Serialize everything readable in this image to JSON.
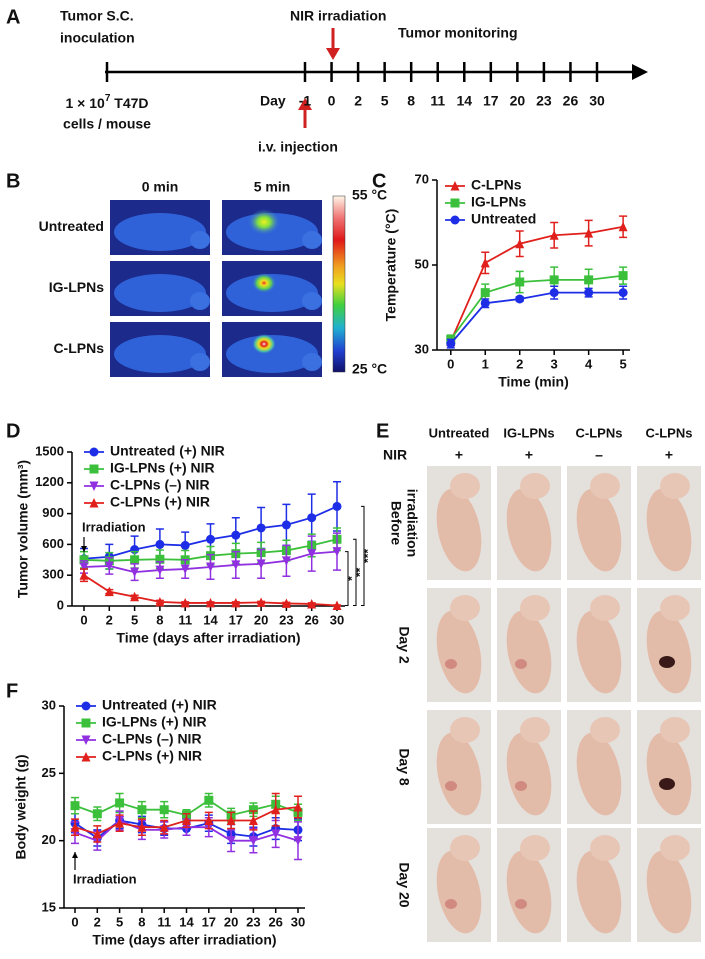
{
  "panels": {
    "A": {
      "label": "A",
      "inoculation": [
        "Tumor S.C.",
        "inoculation"
      ],
      "dose": {
        "base": "1 × 10",
        "exponent": "7",
        "rest": " T47D"
      },
      "dose_unit": "cells / mouse",
      "irradiation": "NIR irradiation",
      "monitoring": "Tumor monitoring",
      "day_label": "Day",
      "days": [
        -1,
        0,
        2,
        5,
        8,
        11,
        14,
        17,
        20,
        23,
        26,
        30
      ],
      "injection": "i.v. injection"
    },
    "B": {
      "label": "B",
      "columns": [
        "0 min",
        "5 min"
      ],
      "rows": [
        "Untreated",
        "IG-LPNs",
        "C-LPNs"
      ],
      "scale_max": "55 °C",
      "scale_min": "25 °C"
    },
    "E": {
      "label": "E",
      "columns": [
        "Untreated",
        "IG-LPNs",
        "C-LPNs",
        "C-LPNs"
      ],
      "nir_label": "NIR",
      "nir": [
        "+",
        "+",
        "–",
        "+"
      ],
      "rows": [
        [
          "Before",
          "irradiation"
        ],
        [
          "Day 2"
        ],
        [
          "Day 8"
        ],
        [
          "Day 20"
        ]
      ]
    }
  },
  "chart_data": [
    {
      "panel": "C",
      "type": "line",
      "x": [
        0,
        1,
        2,
        3,
        4,
        5
      ],
      "xlim": [
        -0.4,
        5.2
      ],
      "xticks": [
        0,
        1,
        2,
        3,
        4,
        5
      ],
      "ylim": [
        30,
        70
      ],
      "yticks": [
        30,
        50,
        70
      ],
      "xlabel": "Time (min)",
      "ylabel": "Temperature (°C)",
      "legend": "upper left",
      "series": [
        {
          "name": "C-LPNs",
          "color": "#e0201c",
          "marker": "triangle",
          "values": [
            32,
            50.5,
            55,
            57,
            57.5,
            59
          ],
          "errors": [
            1,
            2.5,
            3,
            3,
            3,
            2.5
          ]
        },
        {
          "name": "IG-LPNs",
          "color": "#3cc03c",
          "marker": "square",
          "values": [
            32.5,
            43.5,
            46,
            46.5,
            46.5,
            47.5
          ],
          "errors": [
            1,
            2,
            2.5,
            3,
            2.5,
            2
          ]
        },
        {
          "name": "Untreated",
          "color": "#1e2ee6",
          "marker": "circle",
          "values": [
            31.5,
            41,
            42,
            43.5,
            43.5,
            43.5
          ],
          "errors": [
            1,
            1,
            0.5,
            1.5,
            1,
            1.5
          ]
        }
      ]
    },
    {
      "panel": "D",
      "type": "line",
      "categories": [
        "0",
        "2",
        "5",
        "8",
        "11",
        "14",
        "17",
        "20",
        "23",
        "26",
        "30"
      ],
      "ylim": [
        0,
        1500
      ],
      "yticks": [
        0,
        300,
        600,
        900,
        1200,
        1500
      ],
      "xlabel": "Time (days after irradiation)",
      "ylabel": "Tumor volume (mm³)",
      "legend": "upper left",
      "annotation": "Irradiation",
      "significance": [
        "*",
        "**",
        "***"
      ],
      "series": [
        {
          "name": "Untreated (+) NIR",
          "color": "#1e2ee6",
          "marker": "circle",
          "values": [
            460,
            480,
            550,
            600,
            590,
            650,
            690,
            760,
            790,
            860,
            970
          ],
          "errors": [
            100,
            120,
            130,
            150,
            130,
            150,
            170,
            200,
            200,
            230,
            240
          ]
        },
        {
          "name": "IG-LPNs (+) NIR",
          "color": "#3cc03c",
          "marker": "square",
          "values": [
            450,
            440,
            450,
            455,
            450,
            490,
            510,
            520,
            540,
            590,
            650
          ],
          "errors": [
            80,
            80,
            80,
            90,
            90,
            90,
            100,
            100,
            100,
            110,
            110
          ]
        },
        {
          "name": "C-LPNs (–) NIR",
          "color": "#9030e0",
          "marker": "triangle-down",
          "values": [
            380,
            390,
            330,
            350,
            360,
            380,
            400,
            410,
            440,
            510,
            530
          ],
          "errors": [
            60,
            80,
            80,
            80,
            90,
            120,
            130,
            140,
            150,
            170,
            180
          ]
        },
        {
          "name": "C-LPNs (+) NIR",
          "color": "#e0201c",
          "marker": "triangle",
          "values": [
            300,
            140,
            90,
            40,
            30,
            30,
            30,
            35,
            25,
            20,
            5
          ],
          "errors": [
            60,
            20,
            15,
            15,
            10,
            10,
            10,
            10,
            10,
            10,
            5
          ]
        }
      ]
    },
    {
      "panel": "F",
      "type": "line",
      "categories": [
        "0",
        "2",
        "5",
        "8",
        "11",
        "14",
        "17",
        "20",
        "23",
        "26",
        "30"
      ],
      "ylim": [
        15,
        30
      ],
      "yticks": [
        15,
        20,
        25,
        30
      ],
      "xlabel": "Time (days after irradiation)",
      "ylabel": "Body weight (g)",
      "legend": "upper left",
      "annotation": "Irradiation",
      "series": [
        {
          "name": "Untreated (+) NIR",
          "color": "#1e2ee6",
          "marker": "circle",
          "values": [
            21.3,
            20.2,
            21.5,
            21.2,
            20.9,
            20.9,
            21.3,
            20.5,
            20.3,
            20.9,
            20.8
          ],
          "errors": [
            0.7,
            0.6,
            0.6,
            0.6,
            0.5,
            0.5,
            0.6,
            0.7,
            0.7,
            0.8,
            0.8
          ]
        },
        {
          "name": "IG-LPNs (+) NIR",
          "color": "#3cc03c",
          "marker": "square",
          "values": [
            22.6,
            22.0,
            22.8,
            22.3,
            22.3,
            21.9,
            23.0,
            21.9,
            22.3,
            22.7,
            22.1
          ],
          "errors": [
            0.6,
            0.5,
            0.7,
            0.6,
            0.6,
            0.4,
            0.5,
            0.5,
            0.5,
            0.6,
            0.6
          ]
        },
        {
          "name": "C-LPNs (–) NIR",
          "color": "#9030e0",
          "marker": "triangle-down",
          "values": [
            20.6,
            20.0,
            21.5,
            20.8,
            20.8,
            21.0,
            21.0,
            20.0,
            20.0,
            20.5,
            20.0
          ],
          "errors": [
            0.8,
            0.7,
            0.7,
            0.7,
            0.6,
            0.6,
            0.7,
            0.8,
            0.9,
            1.0,
            1.4
          ]
        },
        {
          "name": "C-LPNs (+) NIR",
          "color": "#e0201c",
          "marker": "triangle",
          "values": [
            21.0,
            20.5,
            21.3,
            21.0,
            21.0,
            21.5,
            21.5,
            21.5,
            21.5,
            22.3,
            22.5
          ],
          "errors": [
            0.6,
            0.6,
            0.6,
            0.6,
            0.5,
            0.5,
            0.6,
            0.6,
            0.7,
            1.2,
            0.8
          ]
        }
      ]
    }
  ]
}
